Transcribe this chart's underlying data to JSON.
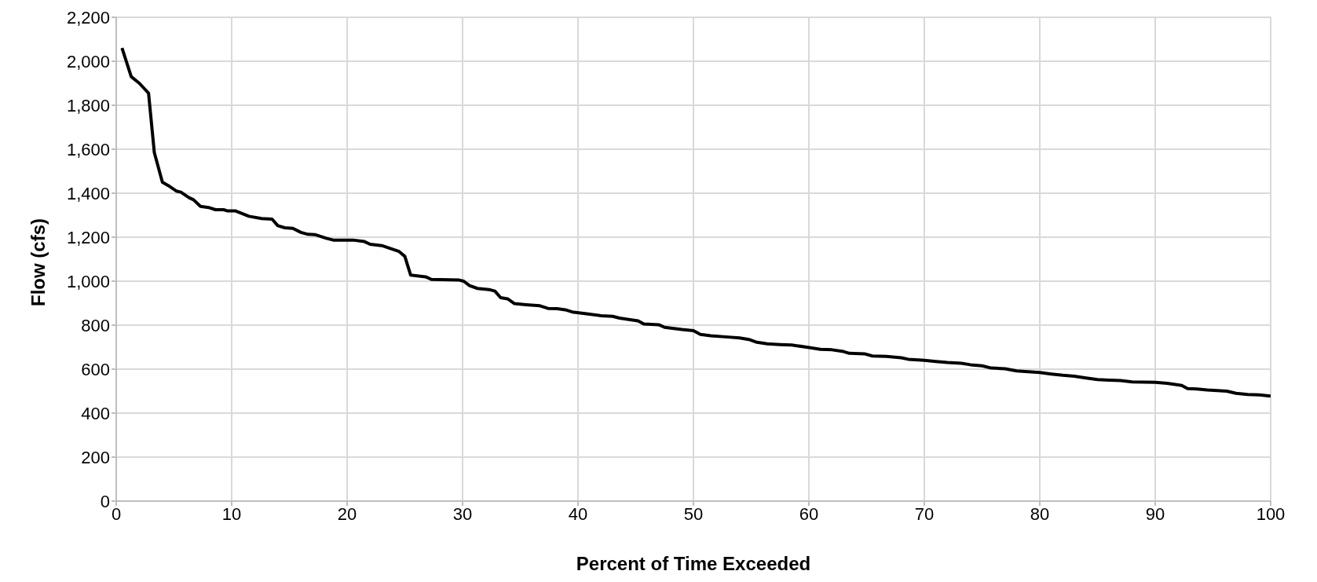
{
  "chart_data": {
    "type": "line",
    "xlabel": "Percent of Time Exceeded",
    "ylabel": "Flow (cfs)",
    "xlim": [
      0,
      100
    ],
    "xticks": [
      0,
      10,
      20,
      30,
      40,
      50,
      60,
      70,
      80,
      90,
      100
    ],
    "ylim": [
      0,
      2200
    ],
    "yticks": [
      0,
      200,
      400,
      600,
      800,
      {
        "value": 1000,
        "label": "1,000"
      },
      {
        "value": 1200,
        "label": "1,200"
      },
      {
        "value": 1400,
        "label": "1,400"
      },
      {
        "value": 1600,
        "label": "1,600"
      },
      {
        "value": 1800,
        "label": "1,800"
      },
      {
        "value": 2000,
        "label": "2,000"
      },
      {
        "value": 2200,
        "label": "2,200"
      }
    ],
    "grid": true,
    "legend": false,
    "marker": "none",
    "line_style": "solid",
    "series": [
      {
        "color": "#000000",
        "x": [
          0.5,
          1.3,
          2,
          2.8,
          3.3,
          4,
          4.5,
          5.2,
          5.6,
          6.3,
          6.7,
          7.3,
          8,
          8.6,
          9.3,
          9.6,
          10.3,
          11.5,
          12.6,
          13.5,
          14,
          14.6,
          15.3,
          16,
          16.6,
          17.2,
          18.2,
          18.8,
          20.5,
          21.5,
          22,
          23,
          23.8,
          24.5,
          25,
          25.5,
          26.8,
          27.3,
          29.7,
          30.1,
          30.6,
          31.3,
          32.3,
          32.8,
          33.3,
          33.9,
          34.5,
          35.5,
          36.7,
          37.4,
          38.2,
          38.9,
          39.5,
          40.2,
          41,
          42,
          43,
          43.6,
          44.5,
          45.2,
          45.7,
          47,
          47.5,
          49,
          50,
          50.6,
          51.5,
          53,
          54,
          54.8,
          55.5,
          56.4,
          57.5,
          58.5,
          59.8,
          61,
          62,
          63,
          63.5,
          64.8,
          65.5,
          66.7,
          68,
          68.6,
          70,
          71,
          72,
          73.2,
          74,
          75,
          75.8,
          77,
          78,
          79,
          80,
          81,
          82,
          83,
          84,
          85,
          86,
          87,
          88,
          90,
          91,
          91.5,
          92.3,
          92.8,
          93.6,
          94.5,
          96.2,
          97,
          98,
          99,
          100
        ],
        "values": [
          2060,
          1930,
          1900,
          1855,
          1585,
          1450,
          1435,
          1410,
          1405,
          1380,
          1370,
          1340,
          1335,
          1325,
          1325,
          1320,
          1320,
          1295,
          1285,
          1282,
          1252,
          1243,
          1240,
          1222,
          1213,
          1212,
          1195,
          1187,
          1187,
          1180,
          1168,
          1162,
          1148,
          1135,
          1113,
          1028,
          1020,
          1008,
          1005,
          1000,
          980,
          967,
          962,
          955,
          925,
          920,
          898,
          893,
          888,
          876,
          875,
          870,
          860,
          855,
          850,
          843,
          840,
          832,
          825,
          820,
          805,
          802,
          790,
          780,
          775,
          758,
          752,
          746,
          742,
          735,
          722,
          715,
          712,
          710,
          700,
          690,
          688,
          680,
          672,
          670,
          660,
          658,
          652,
          645,
          640,
          635,
          630,
          627,
          620,
          615,
          605,
          602,
          592,
          588,
          585,
          578,
          572,
          568,
          560,
          553,
          550,
          548,
          542,
          540,
          536,
          532,
          526,
          512,
          510,
          505,
          500,
          490,
          485,
          483,
          478
        ]
      }
    ]
  }
}
